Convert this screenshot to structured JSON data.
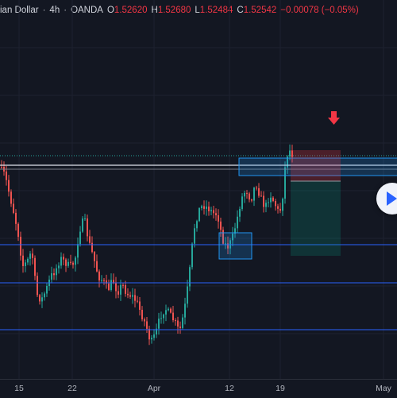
{
  "legend": {
    "symbol": "ian Dollar",
    "interval": "4h",
    "source": "OANDA",
    "open_label": "O",
    "open": "1.52620",
    "high_label": "H",
    "high": "1.52680",
    "low_label": "L",
    "low": "1.52484",
    "close_label": "C",
    "close": "1.52542",
    "change": "−0.00078 (−0.05%)"
  },
  "xaxis": {
    "ticks": [
      "15",
      "22",
      "Apr",
      "12",
      "19",
      "May"
    ]
  },
  "icons": {
    "play": "play-icon",
    "arrow": "down-arrow-icon"
  },
  "colors": {
    "background": "#131722",
    "up": "#26a69a",
    "down": "#ef5350",
    "zone_line": "#2962ff",
    "zone_fill": "#2196f3",
    "arrow": "#f23645"
  },
  "chart_data": {
    "type": "candlestick",
    "title": "",
    "xlabel": "",
    "ylabel": "",
    "drawings": [
      "horizontal-lines",
      "zone-boxes",
      "short-position",
      "sell-arrow"
    ]
  }
}
